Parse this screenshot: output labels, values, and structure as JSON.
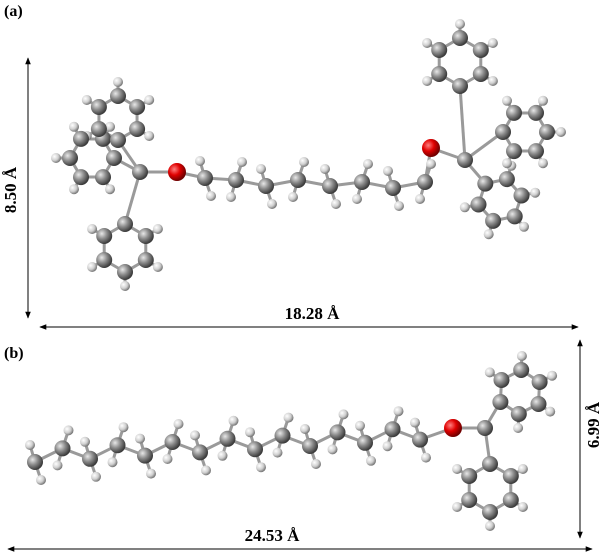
{
  "panels": [
    {
      "label": "(a)",
      "height": "8.50 Å",
      "width": "18.28 Å"
    },
    {
      "label": "(b)",
      "height": "6.99 Å",
      "width": "24.53 Å"
    }
  ]
}
